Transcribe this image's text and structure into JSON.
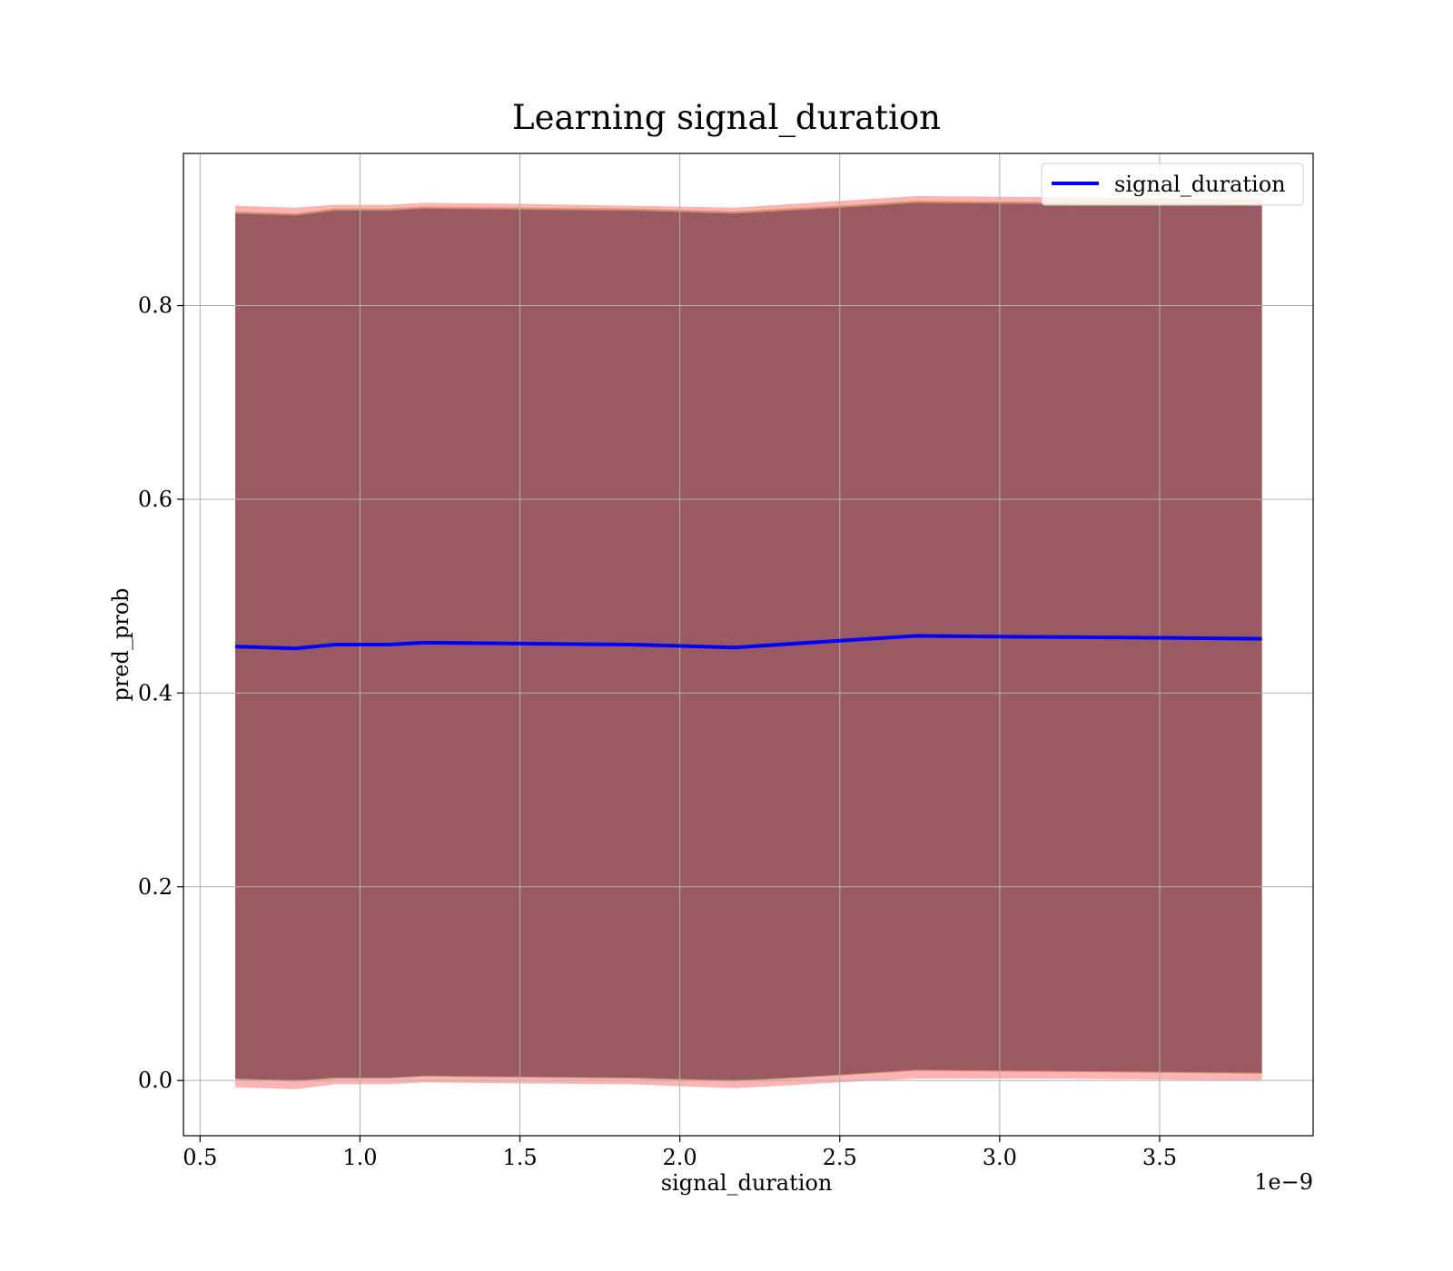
{
  "chart_data": {
    "type": "area",
    "title": "Learning signal_duration",
    "xlabel": "signal_duration",
    "ylabel": "pred_prob",
    "x_offset_label": "1e−9",
    "x_tick_labels": [
      "0.5",
      "1.0",
      "1.5",
      "2.0",
      "2.5",
      "3.0",
      "3.5"
    ],
    "x_tick_values": [
      5e-10,
      1e-09,
      1.5e-09,
      2e-09,
      2.5e-09,
      3e-09,
      3.5e-09
    ],
    "y_tick_labels": [
      "0.0",
      "0.2",
      "0.4",
      "0.6",
      "0.8"
    ],
    "y_tick_values": [
      0.0,
      0.2,
      0.4,
      0.6,
      0.8
    ],
    "xlim": [
      4.48e-10,
      3.98e-09
    ],
    "ylim": [
      -0.057,
      0.957
    ],
    "grid": true,
    "legend_position": "top-right",
    "x": [
      6.1e-10,
      8e-10,
      9.2e-10,
      1.09e-09,
      1.2e-09,
      1.5e-09,
      1.85e-09,
      2.17e-09,
      2.5e-09,
      2.74e-09,
      3.1e-09,
      3.5e-09,
      3.82e-09
    ],
    "series": [
      {
        "name": "signal_duration",
        "color": "#0000ff",
        "values": [
          0.448,
          0.446,
          0.45,
          0.45,
          0.452,
          0.451,
          0.45,
          0.447,
          0.454,
          0.459,
          0.458,
          0.457,
          0.456
        ]
      }
    ],
    "bands": [
      {
        "color": "#ff9999",
        "lower": [
          -0.007,
          -0.009,
          -0.004,
          -0.004,
          -0.002,
          -0.003,
          -0.004,
          -0.008,
          -0.002,
          0.002,
          0.002,
          0.001,
          0.0
        ],
        "upper": [
          0.903,
          0.901,
          0.904,
          0.904,
          0.906,
          0.905,
          0.903,
          0.901,
          0.908,
          0.913,
          0.912,
          0.911,
          0.91
        ]
      },
      {
        "color": "#c28a5a",
        "lower": [
          0.001,
          -0.001,
          0.002,
          0.002,
          0.004,
          0.003,
          0.002,
          -0.001,
          0.005,
          0.01,
          0.009,
          0.008,
          0.007
        ],
        "upper": [
          0.897,
          0.895,
          0.9,
          0.9,
          0.902,
          0.901,
          0.9,
          0.897,
          0.903,
          0.908,
          0.907,
          0.906,
          0.905
        ]
      },
      {
        "color": "#8b4c5e",
        "lower": [
          0.002,
          0.0,
          0.003,
          0.003,
          0.005,
          0.004,
          0.003,
          0.0,
          0.006,
          0.011,
          0.01,
          0.009,
          0.008
        ],
        "upper": [
          0.895,
          0.893,
          0.898,
          0.898,
          0.9,
          0.899,
          0.898,
          0.895,
          0.901,
          0.906,
          0.905,
          0.904,
          0.903
        ]
      }
    ]
  }
}
